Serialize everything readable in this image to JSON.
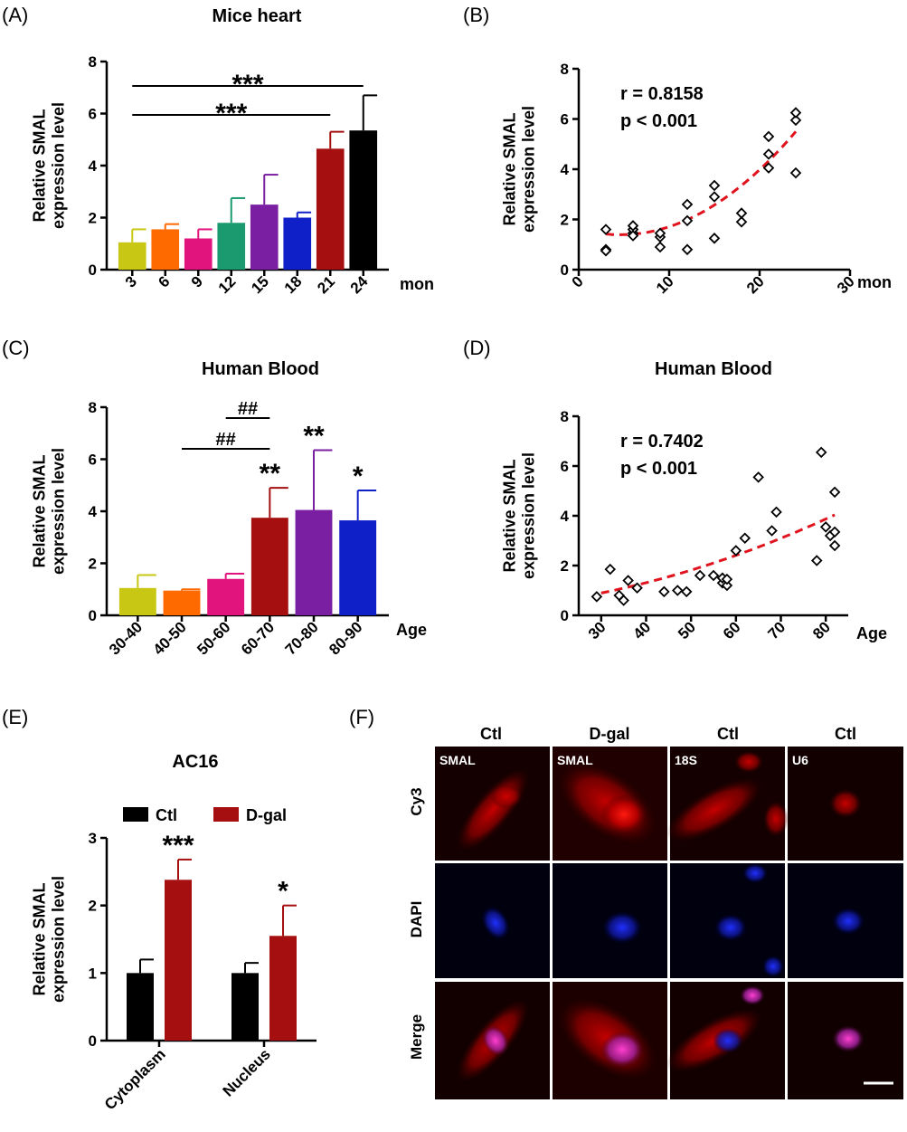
{
  "chart_data": [
    {
      "panel": "(A)",
      "type": "bar",
      "title": "Mice heart",
      "ylabel": "Relative SMAL\nexpression level",
      "xunit": "mon",
      "categories": [
        "3",
        "6",
        "9",
        "12",
        "15",
        "18",
        "21",
        "24"
      ],
      "values": [
        1.05,
        1.55,
        1.2,
        1.8,
        2.5,
        2.0,
        4.65,
        5.35
      ],
      "errors": [
        0.5,
        0.2,
        0.35,
        0.95,
        1.15,
        0.2,
        0.65,
        1.35
      ],
      "colors": [
        "#c8c814",
        "#ff6a00",
        "#e0147c",
        "#1a9a6e",
        "#7b1fa2",
        "#1020c8",
        "#a50f0f",
        "#000000"
      ],
      "ylim": [
        0,
        8
      ],
      "yticks": [
        "0",
        "2",
        "4",
        "6",
        "8"
      ],
      "significance": [
        {
          "from": 0,
          "to": 7,
          "label": "***"
        },
        {
          "from": 0,
          "to": 6,
          "label": "***"
        }
      ]
    },
    {
      "panel": "(B)",
      "type": "scatter",
      "title": "",
      "ylabel": "Relative SMAL\nexpression level",
      "xunit": "mon",
      "xlim": [
        0,
        30
      ],
      "ylim": [
        0,
        8
      ],
      "xticks": [
        "0",
        "10",
        "20",
        "30"
      ],
      "yticks": [
        "0",
        "2",
        "4",
        "6",
        "8"
      ],
      "points": [
        [
          3,
          0.8
        ],
        [
          3,
          0.75
        ],
        [
          3,
          1.6
        ],
        [
          6,
          1.45
        ],
        [
          6,
          1.6
        ],
        [
          6,
          1.75
        ],
        [
          6,
          1.35
        ],
        [
          9,
          0.9
        ],
        [
          9,
          1.3
        ],
        [
          9,
          1.45
        ],
        [
          12,
          0.8
        ],
        [
          12,
          1.95
        ],
        [
          12,
          2.6
        ],
        [
          15,
          1.25
        ],
        [
          15,
          2.9
        ],
        [
          15,
          3.35
        ],
        [
          18,
          1.9
        ],
        [
          18,
          2.25
        ],
        [
          21,
          4.05
        ],
        [
          21,
          4.6
        ],
        [
          21,
          5.3
        ],
        [
          24,
          3.85
        ],
        [
          24,
          5.95
        ],
        [
          24,
          6.25
        ]
      ],
      "fit": {
        "coefficients": [
          1.62,
          -0.1,
          0.0109
        ],
        "x_range": [
          3,
          24
        ],
        "color": "#e0141e"
      },
      "annotations": [
        "r = 0.8158",
        "p < 0.001"
      ]
    },
    {
      "panel": "(C)",
      "type": "bar",
      "title": "Human Blood",
      "ylabel": "Relative SMAL\nexpression level",
      "xunit": "Age",
      "categories": [
        "30-40",
        "40-50",
        "50-60",
        "60-70",
        "70-80",
        "80-90"
      ],
      "values": [
        1.05,
        0.95,
        1.4,
        3.75,
        4.05,
        3.65
      ],
      "errors": [
        0.5,
        0.05,
        0.2,
        1.15,
        2.3,
        1.15
      ],
      "colors": [
        "#c8c814",
        "#ff6a00",
        "#e0147c",
        "#a50f0f",
        "#7b1fa2",
        "#1020c8"
      ],
      "ylim": [
        0,
        8
      ],
      "yticks": [
        "0",
        "2",
        "4",
        "6",
        "8"
      ],
      "star_labels": [
        "",
        "",
        "",
        "**",
        "**",
        "*"
      ],
      "significance": [
        {
          "from": 2,
          "to": 3,
          "label": "##"
        },
        {
          "from": 1,
          "to": 3,
          "label": "##"
        }
      ]
    },
    {
      "panel": "(D)",
      "type": "scatter",
      "title": "Human Blood",
      "ylabel": "Relative SMAL\nexpression level",
      "xunit": "Age",
      "xlim": [
        25,
        85
      ],
      "ylim": [
        0,
        8
      ],
      "xticks": [
        "30",
        "40",
        "50",
        "60",
        "70",
        "80"
      ],
      "yticks": [
        "0",
        "2",
        "4",
        "6",
        "8"
      ],
      "points": [
        [
          29,
          0.75
        ],
        [
          32,
          1.85
        ],
        [
          34,
          0.8
        ],
        [
          35,
          0.6
        ],
        [
          36,
          1.4
        ],
        [
          38,
          1.1
        ],
        [
          44,
          0.95
        ],
        [
          47,
          1.0
        ],
        [
          49,
          0.95
        ],
        [
          52,
          1.6
        ],
        [
          55,
          1.6
        ],
        [
          57,
          1.3
        ],
        [
          57,
          1.5
        ],
        [
          58,
          1.2
        ],
        [
          58,
          1.45
        ],
        [
          60,
          2.6
        ],
        [
          62,
          3.1
        ],
        [
          65,
          5.55
        ],
        [
          68,
          3.4
        ],
        [
          69,
          4.15
        ],
        [
          78,
          2.2
        ],
        [
          79,
          6.55
        ],
        [
          80,
          3.55
        ],
        [
          81,
          3.2
        ],
        [
          82,
          2.8
        ],
        [
          82,
          3.35
        ],
        [
          82,
          4.95
        ]
      ],
      "fit": {
        "coefficients": [
          0.19,
          0.01,
          0.00045
        ],
        "x_range": [
          30,
          82
        ],
        "color": "#e0141e"
      },
      "annotations": [
        "r = 0.7402",
        "p < 0.001"
      ]
    },
    {
      "panel": "(E)",
      "type": "bar",
      "title": "AC16",
      "ylabel": "Relative SMAL\nexpression level",
      "categories": [
        "Cytoplasm",
        "Nucleus"
      ],
      "series": [
        {
          "name": "Ctl",
          "color": "#000000",
          "values": [
            1.0,
            1.0
          ],
          "errors": [
            0.2,
            0.15
          ],
          "labels": [
            "",
            ""
          ]
        },
        {
          "name": "D-gal",
          "color": "#a50f0f",
          "values": [
            2.38,
            1.55
          ],
          "errors": [
            0.3,
            0.45
          ],
          "labels": [
            "***",
            "*"
          ]
        }
      ],
      "ylim": [
        0,
        3
      ],
      "yticks": [
        "0",
        "1",
        "2",
        "3"
      ]
    }
  ],
  "panel_labels": [
    "(A)",
    "(B)",
    "(C)",
    "(D)",
    "(E)",
    "(F)"
  ],
  "micrograph": {
    "panel": "(F)",
    "columns": [
      "Ctl",
      "D-gal",
      "Ctl",
      "Ctl"
    ],
    "rows": [
      "Cy3",
      "DAPI",
      "Merge"
    ],
    "tags": [
      "SMAL",
      "SMAL",
      "18S",
      "U6"
    ]
  }
}
